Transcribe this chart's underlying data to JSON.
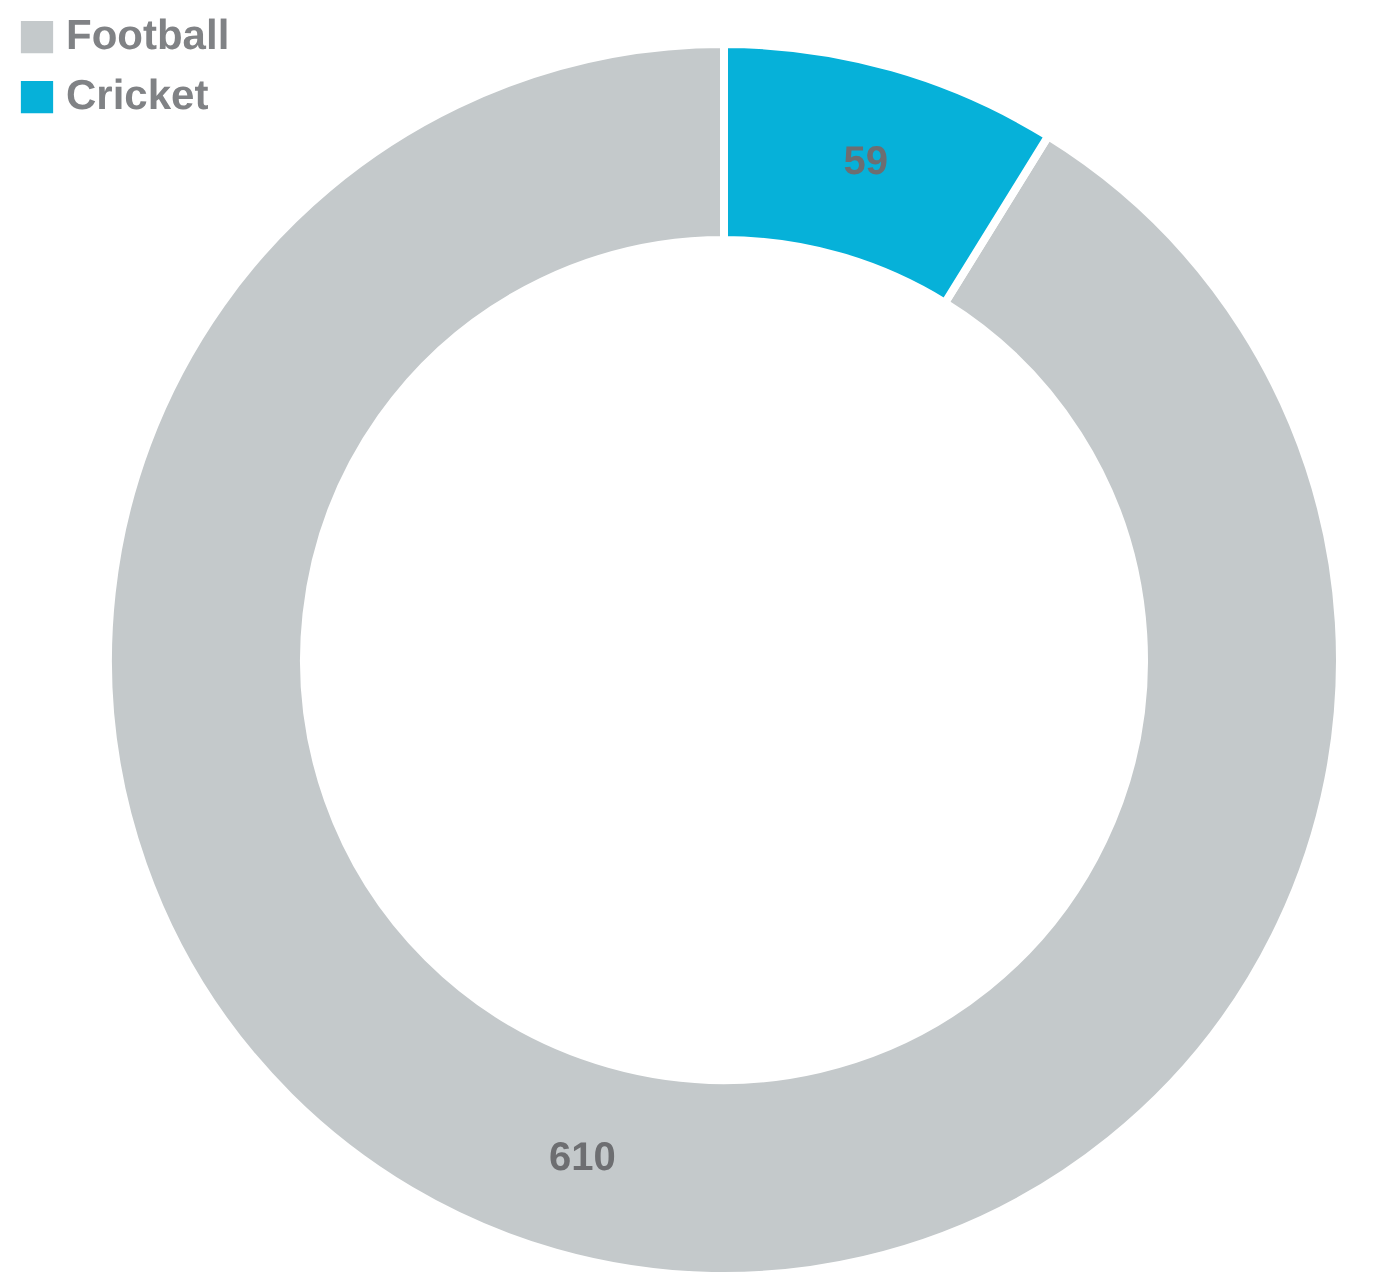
{
  "chart_data": {
    "type": "donut",
    "categories": [
      "Football",
      "Cricket"
    ],
    "values": [
      610,
      59
    ],
    "colors": [
      "#c4c9cb",
      "#06b1d9"
    ],
    "data_labels": true,
    "legend": "top left"
  }
}
